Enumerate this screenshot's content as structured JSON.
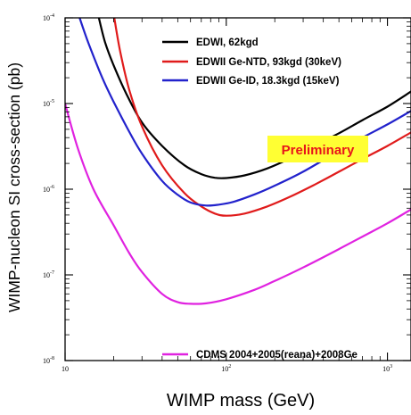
{
  "chart_data": {
    "type": "line",
    "xlabel": "WIMP mass (GeV)",
    "ylabel": "WIMP-nucleon SI cross-section (pb)",
    "xscale": "log",
    "yscale": "log",
    "xlim": [
      10,
      1400
    ],
    "ylim": [
      1e-08,
      0.0001
    ],
    "x_ticks": [
      {
        "value": 10,
        "base": "10",
        "exp": ""
      },
      {
        "value": 100,
        "base": "10",
        "exp": "2"
      },
      {
        "value": 1000,
        "base": "10",
        "exp": "3"
      }
    ],
    "y_ticks": [
      {
        "value": 0.0001,
        "base": "10",
        "exp": "-4"
      },
      {
        "value": 1e-05,
        "base": "10",
        "exp": "-5"
      },
      {
        "value": 1e-06,
        "base": "10",
        "exp": "-6"
      },
      {
        "value": 1e-07,
        "base": "10",
        "exp": "-7"
      },
      {
        "value": 1e-08,
        "base": "10",
        "exp": "-8"
      }
    ],
    "grid": false,
    "annotation": {
      "text": "Preliminary",
      "bg": "#ffff33",
      "color": "#e8141b"
    },
    "series": [
      {
        "name": "EDWI, 62kgd",
        "color": "#000000",
        "points": [
          [
            16.2,
            0.0001
          ],
          [
            17.7,
            5.2e-05
          ],
          [
            20,
            2.8e-05
          ],
          [
            24,
            1.3e-05
          ],
          [
            30,
            6e-06
          ],
          [
            40,
            3.2e-06
          ],
          [
            55,
            1.9e-06
          ],
          [
            70,
            1.5e-06
          ],
          [
            85,
            1.36e-06
          ],
          [
            100,
            1.35e-06
          ],
          [
            130,
            1.45e-06
          ],
          [
            180,
            1.75e-06
          ],
          [
            250,
            2.3e-06
          ],
          [
            350,
            3.2e-06
          ],
          [
            500,
            4.5e-06
          ],
          [
            700,
            6.4e-06
          ],
          [
            1000,
            9.2e-06
          ],
          [
            1400,
            1.38e-05
          ]
        ]
      },
      {
        "name": "EDWII Ge-NTD, 93kgd (30keV)",
        "color": "#e01b1b",
        "points": [
          [
            20.2,
            0.0001
          ],
          [
            22,
            4e-05
          ],
          [
            25,
            1.45e-05
          ],
          [
            30,
            5.4e-06
          ],
          [
            40,
            1.9e-06
          ],
          [
            55,
            9e-07
          ],
          [
            70,
            6.3e-07
          ],
          [
            85,
            5.2e-07
          ],
          [
            100,
            4.9e-07
          ],
          [
            130,
            5.2e-07
          ],
          [
            180,
            6.3e-07
          ],
          [
            250,
            8.2e-07
          ],
          [
            350,
            1.12e-06
          ],
          [
            500,
            1.6e-06
          ],
          [
            700,
            2.25e-06
          ],
          [
            1000,
            3.2e-06
          ],
          [
            1400,
            4.6e-06
          ]
        ]
      },
      {
        "name": "EDWII Ge-ID, 18.3kgd (15keV)",
        "color": "#2222cc",
        "points": [
          [
            12.3,
            0.0001
          ],
          [
            14,
            5e-05
          ],
          [
            17,
            2e-05
          ],
          [
            20,
            1.05e-05
          ],
          [
            25,
            4.7e-06
          ],
          [
            30,
            2.6e-06
          ],
          [
            40,
            1.25e-06
          ],
          [
            50,
            8.6e-07
          ],
          [
            60,
            7e-07
          ],
          [
            75,
            6.45e-07
          ],
          [
            90,
            6.6e-07
          ],
          [
            110,
            7.1e-07
          ],
          [
            150,
            8.7e-07
          ],
          [
            200,
            1.1e-06
          ],
          [
            300,
            1.6e-06
          ],
          [
            500,
            2.8e-06
          ],
          [
            700,
            4e-06
          ],
          [
            1000,
            5.7e-06
          ],
          [
            1400,
            8.2e-06
          ]
        ]
      },
      {
        "name": "CDMS 2004+2005(reana)+2008Ge",
        "color": "#e022e0",
        "points": [
          [
            10,
            1e-05
          ],
          [
            12,
            3e-06
          ],
          [
            15,
            1e-06
          ],
          [
            20,
            3.8e-07
          ],
          [
            25,
            1.8e-07
          ],
          [
            30,
            1.08e-07
          ],
          [
            40,
            6e-08
          ],
          [
            50,
            4.8e-08
          ],
          [
            60,
            4.6e-08
          ],
          [
            75,
            4.65e-08
          ],
          [
            100,
            5.2e-08
          ],
          [
            150,
            6.7e-08
          ],
          [
            200,
            8.5e-08
          ],
          [
            300,
            1.22e-07
          ],
          [
            500,
            2e-07
          ],
          [
            700,
            2.8e-07
          ],
          [
            1000,
            4e-07
          ],
          [
            1400,
            5.8e-07
          ]
        ]
      }
    ]
  }
}
